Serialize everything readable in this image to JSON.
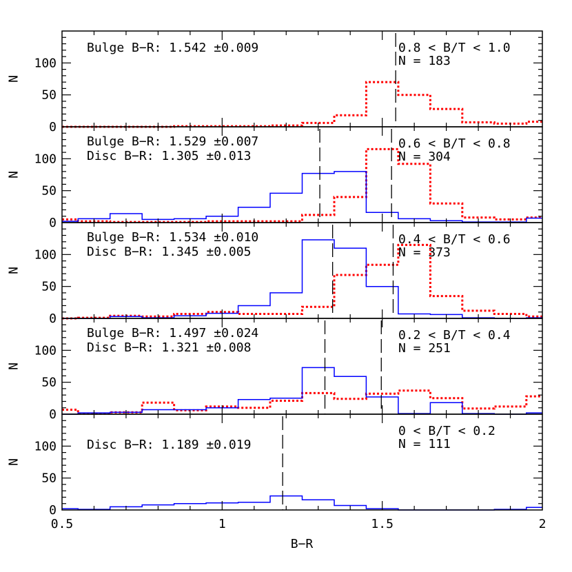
{
  "chart_data": {
    "type": "histogram",
    "xlabel": "B−R",
    "ylabel": "N",
    "xlim": [
      0.5,
      2.0
    ],
    "ylim": [
      0,
      150
    ],
    "x_ticks": [
      "0.5",
      "1",
      "1.5",
      "2"
    ],
    "y_ticks": [
      "0",
      "50",
      "100"
    ],
    "colors": {
      "disc": "#0000ff",
      "bulge": "#ff0000",
      "axes": "#000000"
    },
    "panels": [
      {
        "range_label": "0.8 < B/T < 1.0",
        "n_label": "N = 183",
        "bulge_label": "Bulge B−R: 1.542 ±0.009",
        "disc_label": "",
        "vlines": [
          1.542
        ],
        "edges": [
          0.5,
          0.55,
          0.65,
          0.75,
          0.85,
          0.95,
          1.05,
          1.15,
          1.25,
          1.35,
          1.45,
          1.55,
          1.65,
          1.75,
          1.85,
          1.95,
          2.0
        ],
        "bulge_counts": [
          0,
          0,
          0,
          0,
          1,
          1,
          1,
          2,
          6,
          18,
          70,
          50,
          28,
          7,
          5,
          8
        ],
        "disc_counts": []
      },
      {
        "range_label": "0.6 < B/T < 0.8",
        "n_label": "N = 304",
        "bulge_label": "Bulge B−R: 1.529 ±0.007",
        "disc_label": "Disc  B−R: 1.305 ±0.013",
        "vlines": [
          1.305,
          1.529
        ],
        "edges": [
          0.5,
          0.55,
          0.65,
          0.75,
          0.85,
          0.95,
          1.05,
          1.15,
          1.25,
          1.35,
          1.45,
          1.55,
          1.65,
          1.75,
          1.85,
          1.95,
          2.0
        ],
        "bulge_counts": [
          5,
          2,
          1,
          1,
          1,
          2,
          2,
          2,
          12,
          40,
          115,
          92,
          30,
          8,
          5,
          8
        ],
        "disc_counts": [
          2,
          6,
          14,
          5,
          6,
          10,
          24,
          46,
          77,
          80,
          16,
          6,
          3,
          1,
          1,
          7
        ]
      },
      {
        "range_label": "0.4 < B/T < 0.6",
        "n_label": "N = 373",
        "bulge_label": "Bulge B−R: 1.534 ±0.010",
        "disc_label": "Disc  B−R: 1.345 ±0.005",
        "vlines": [
          1.345,
          1.534
        ],
        "edges": [
          0.5,
          0.55,
          0.65,
          0.75,
          0.85,
          0.95,
          1.05,
          1.15,
          1.25,
          1.35,
          1.45,
          1.55,
          1.65,
          1.75,
          1.85,
          1.95,
          2.0
        ],
        "bulge_counts": [
          0,
          1,
          4,
          3,
          7,
          10,
          7,
          7,
          18,
          68,
          84,
          115,
          35,
          12,
          7,
          3
        ],
        "disc_counts": [
          0,
          0,
          3,
          1,
          4,
          8,
          20,
          40,
          123,
          110,
          50,
          7,
          6,
          1,
          0,
          1
        ]
      },
      {
        "range_label": "0.2 < B/T < 0.4",
        "n_label": "N = 251",
        "bulge_label": "Bulge B−R: 1.497 ±0.024",
        "disc_label": "Disc  B−R: 1.321 ±0.008",
        "vlines": [
          1.321,
          1.497
        ],
        "edges": [
          0.5,
          0.55,
          0.65,
          0.75,
          0.85,
          0.95,
          1.05,
          1.15,
          1.25,
          1.35,
          1.45,
          1.55,
          1.65,
          1.75,
          1.85,
          1.95,
          2.0
        ],
        "bulge_counts": [
          7,
          1,
          3,
          18,
          6,
          12,
          10,
          21,
          33,
          24,
          32,
          37,
          25,
          9,
          12,
          28
        ],
        "disc_counts": [
          0,
          2,
          3,
          7,
          7,
          10,
          23,
          25,
          73,
          59,
          27,
          1,
          18,
          1,
          0,
          2
        ]
      },
      {
        "range_label": "0 < B/T < 0.2",
        "n_label": "N = 111",
        "bulge_label": "",
        "disc_label": "Disc  B−R: 1.189 ±0.019",
        "vlines": [
          1.189
        ],
        "edges": [
          0.5,
          0.55,
          0.65,
          0.75,
          0.85,
          0.95,
          1.05,
          1.15,
          1.25,
          1.35,
          1.45,
          1.55,
          1.65,
          1.75,
          1.85,
          1.95,
          2.0
        ],
        "bulge_counts": [],
        "disc_counts": [
          2,
          1,
          5,
          8,
          10,
          11,
          12,
          22,
          16,
          7,
          2,
          0,
          0,
          0,
          1,
          4
        ]
      }
    ]
  }
}
